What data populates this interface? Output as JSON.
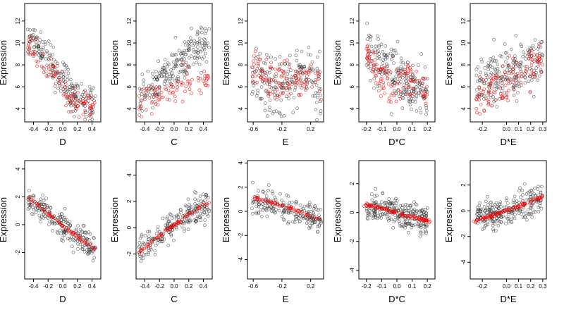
{
  "figure": {
    "title": ""
  },
  "colors": {
    "observed": "#333333",
    "fitted": "#ff0000",
    "frame": "#000000"
  },
  "chart_data": [
    {
      "type": "scatter",
      "xlabel": "D",
      "ylabel": "Expression",
      "xlim": [
        -0.52,
        0.52
      ],
      "ylim": [
        2.8,
        13.6
      ],
      "xticks": [
        -0.4,
        -0.2,
        0.0,
        0.2,
        0.4
      ],
      "xtick_labels": [
        "-0.4",
        "-0.2",
        "0.0",
        "0.2",
        "0.4"
      ],
      "yticks": [
        4,
        6,
        8,
        10,
        12
      ],
      "ytick_labels": [
        "4",
        "6",
        "8",
        "10",
        "12"
      ],
      "observed": {
        "trend": [
          [
            -0.48,
            11.0
          ],
          [
            -0.3,
            9.2
          ],
          [
            -0.1,
            7.4
          ],
          [
            0.1,
            5.6
          ],
          [
            0.3,
            4.6
          ],
          [
            0.45,
            4.2
          ]
        ],
        "spread": 1.8,
        "n": 220
      },
      "fitted": {
        "trend": [
          [
            -0.48,
            10.0
          ],
          [
            -0.3,
            8.6
          ],
          [
            -0.1,
            7.0
          ],
          [
            0.05,
            5.6
          ],
          [
            0.2,
            4.8
          ],
          [
            0.45,
            4.1
          ]
        ],
        "spread": 1.2,
        "n": 90
      }
    },
    {
      "type": "scatter",
      "xlabel": "C",
      "ylabel": "Expression",
      "xlim": [
        -0.52,
        0.52
      ],
      "ylim": [
        2.8,
        13.6
      ],
      "xticks": [
        -0.4,
        -0.2,
        0.0,
        0.2,
        0.4
      ],
      "xtick_labels": [
        "-0.4",
        "-0.2",
        "0.0",
        "0.2",
        "0.4"
      ],
      "yticks": [
        4,
        6,
        8,
        10,
        12
      ],
      "ytick_labels": [
        "4",
        "6",
        "8",
        "10",
        "12"
      ],
      "observed": {
        "trend": [
          [
            -0.48,
            4.8
          ],
          [
            -0.3,
            6.0
          ],
          [
            -0.1,
            7.2
          ],
          [
            0.1,
            8.4
          ],
          [
            0.3,
            9.4
          ],
          [
            0.48,
            10.4
          ]
        ],
        "spread": 2.0,
        "n": 220
      },
      "fitted": {
        "trend": [
          [
            -0.48,
            4.6
          ],
          [
            -0.2,
            5.4
          ],
          [
            0.0,
            6.0
          ],
          [
            0.2,
            6.4
          ],
          [
            0.48,
            6.8
          ]
        ],
        "spread": 1.5,
        "n": 80
      }
    },
    {
      "type": "scatter",
      "xlabel": "E",
      "ylabel": "Expression",
      "xlim": [
        -0.68,
        0.38
      ],
      "ylim": [
        2.8,
        13.6
      ],
      "xticks": [
        -0.6,
        -0.2,
        0.2
      ],
      "xtick_labels": [
        "-0.6",
        "-0.2",
        "0.2"
      ],
      "yticks": [
        4,
        6,
        8,
        10,
        12
      ],
      "ytick_labels": [
        "4",
        "6",
        "8",
        "10",
        "12"
      ],
      "observed": {
        "trend": [
          [
            -0.62,
            7.5
          ],
          [
            -0.22,
            6.0
          ],
          [
            0.2,
            7.5
          ],
          [
            0.35,
            5.0
          ]
        ],
        "spread": 2.6,
        "n": 200
      },
      "fitted": {
        "trend": [
          [
            -0.62,
            8.0
          ],
          [
            -0.22,
            6.5
          ],
          [
            0.2,
            7.0
          ],
          [
            0.35,
            5.5
          ]
        ],
        "spread": 1.8,
        "n": 110
      }
    },
    {
      "type": "scatter",
      "xlabel": "D*C",
      "ylabel": "Expression",
      "xlim": [
        -0.25,
        0.25
      ],
      "ylim": [
        2.8,
        13.6
      ],
      "xticks": [
        -0.2,
        -0.1,
        0.0,
        0.1,
        0.2
      ],
      "xtick_labels": [
        "-0.2",
        "-0.1",
        "0.0",
        "0.1",
        "0.2"
      ],
      "yticks": [
        4,
        6,
        8,
        10,
        12
      ],
      "ytick_labels": [
        "4",
        "6",
        "8",
        "10",
        "12"
      ],
      "observed": {
        "trend": [
          [
            -0.2,
            9.0
          ],
          [
            -0.1,
            8.0
          ],
          [
            0.0,
            7.0
          ],
          [
            0.1,
            6.0
          ],
          [
            0.2,
            5.0
          ]
        ],
        "spread": 2.4,
        "n": 220
      },
      "fitted": {
        "trend": [
          [
            -0.2,
            9.0
          ],
          [
            -0.05,
            5.5
          ],
          [
            0.02,
            6.5
          ],
          [
            0.1,
            7.0
          ],
          [
            0.2,
            6.0
          ]
        ],
        "spread": 1.6,
        "n": 110
      }
    },
    {
      "type": "scatter",
      "xlabel": "D*E",
      "ylabel": "Expression",
      "xlim": [
        -0.3,
        0.33
      ],
      "ylim": [
        2.8,
        13.6
      ],
      "xticks": [
        -0.2,
        0.0,
        0.1,
        0.2,
        0.3
      ],
      "xtick_labels": [
        "-0.2",
        "0.0",
        "0.1",
        "0.2",
        "0.3"
      ],
      "yticks": [
        4,
        6,
        8,
        10,
        12
      ],
      "ytick_labels": [
        "4",
        "6",
        "8",
        "10",
        "12"
      ],
      "observed": {
        "trend": [
          [
            -0.25,
            6.0
          ],
          [
            -0.05,
            7.0
          ],
          [
            0.0,
            7.5
          ],
          [
            0.05,
            7.0
          ],
          [
            0.3,
            9.0
          ]
        ],
        "spread": 2.5,
        "n": 220
      },
      "fitted": {
        "trend": [
          [
            -0.25,
            5.0
          ],
          [
            0.0,
            6.5
          ],
          [
            0.15,
            7.5
          ],
          [
            0.3,
            8.5
          ]
        ],
        "spread": 1.8,
        "n": 110
      }
    },
    {
      "type": "scatter",
      "xlabel": "D",
      "ylabel": "Expression",
      "xlim": [
        -0.52,
        0.52
      ],
      "ylim": [
        -3.9,
        4.6
      ],
      "xticks": [
        -0.4,
        -0.2,
        0.0,
        0.2,
        0.4
      ],
      "xtick_labels": [
        "-0.4",
        "-0.2",
        "0.0",
        "0.2",
        "0.4"
      ],
      "yticks": [
        -2,
        0,
        2,
        4
      ],
      "ytick_labels": [
        "-2",
        "0",
        "2",
        "4"
      ],
      "observed": {
        "trend": [
          [
            -0.48,
            1.8
          ],
          [
            -0.2,
            0.8
          ],
          [
            0.0,
            0.0
          ],
          [
            0.2,
            -0.8
          ],
          [
            0.45,
            -1.8
          ]
        ],
        "spread": 1.0,
        "n": 220
      },
      "fitted": {
        "trend": [
          [
            -0.48,
            2.0
          ],
          [
            -0.2,
            0.8
          ],
          [
            0.0,
            -0.1
          ],
          [
            0.2,
            -0.8
          ],
          [
            0.45,
            -1.8
          ]
        ],
        "spread": 0.15,
        "n": 70
      }
    },
    {
      "type": "scatter",
      "xlabel": "C",
      "ylabel": "Expression",
      "xlim": [
        -0.52,
        0.52
      ],
      "ylim": [
        -3.9,
        5.1
      ],
      "xticks": [
        -0.4,
        -0.2,
        0.0,
        0.2,
        0.4
      ],
      "xtick_labels": [
        "-0.4",
        "-0.2",
        "0.0",
        "0.2",
        "0.4"
      ],
      "yticks": [
        -2,
        0,
        2,
        4
      ],
      "ytick_labels": [
        "-2",
        "0",
        "2",
        "4"
      ],
      "observed": {
        "trend": [
          [
            -0.48,
            -1.8
          ],
          [
            -0.2,
            -0.6
          ],
          [
            0.0,
            0.2
          ],
          [
            0.2,
            1.0
          ],
          [
            0.48,
            1.9
          ]
        ],
        "spread": 1.0,
        "n": 220
      },
      "fitted": {
        "trend": [
          [
            -0.48,
            -1.9
          ],
          [
            -0.2,
            -0.6
          ],
          [
            0.0,
            0.2
          ],
          [
            0.2,
            1.0
          ],
          [
            0.48,
            1.9
          ]
        ],
        "spread": 0.15,
        "n": 70
      }
    },
    {
      "type": "scatter",
      "xlabel": "E",
      "ylabel": "Expression",
      "xlim": [
        -0.68,
        0.38
      ],
      "ylim": [
        -5.6,
        4.2
      ],
      "xticks": [
        -0.6,
        -0.2,
        0.2
      ],
      "xtick_labels": [
        "-0.6",
        "-0.2",
        "0.2"
      ],
      "yticks": [
        -4,
        -2,
        0,
        2,
        4
      ],
      "ytick_labels": [
        "-4",
        "-2",
        "0",
        "2",
        "4"
      ],
      "observed": {
        "trend": [
          [
            -0.62,
            1.0
          ],
          [
            -0.22,
            0.5
          ],
          [
            0.2,
            -0.5
          ],
          [
            0.35,
            -0.8
          ]
        ],
        "spread": 1.1,
        "n": 200
      },
      "fitted": {
        "trend": [
          [
            -0.62,
            1.2
          ],
          [
            -0.22,
            0.5
          ],
          [
            0.0,
            0.1
          ],
          [
            0.2,
            -0.4
          ],
          [
            0.35,
            -0.7
          ]
        ],
        "spread": 0.12,
        "n": 60
      }
    },
    {
      "type": "scatter",
      "xlabel": "D*C",
      "ylabel": "Expression",
      "xlim": [
        -0.25,
        0.25
      ],
      "ylim": [
        -4.6,
        3.6
      ],
      "xticks": [
        -0.2,
        -0.1,
        0.0,
        0.1,
        0.2
      ],
      "xtick_labels": [
        "-0.2",
        "-0.1",
        "0.0",
        "0.1",
        "0.2"
      ],
      "yticks": [
        -4,
        -2,
        0,
        2
      ],
      "ytick_labels": [
        "-4",
        "-2",
        "0",
        "2"
      ],
      "observed": {
        "trend": [
          [
            -0.2,
            0.4
          ],
          [
            -0.05,
            0.3
          ],
          [
            0.0,
            0.0
          ],
          [
            0.05,
            -0.2
          ],
          [
            0.2,
            -0.5
          ]
        ],
        "spread": 1.0,
        "n": 260
      },
      "fitted": {
        "trend": [
          [
            -0.22,
            0.6
          ],
          [
            0.0,
            0.0
          ],
          [
            0.22,
            -0.6
          ]
        ],
        "spread": 0.12,
        "n": 90
      }
    },
    {
      "type": "scatter",
      "xlabel": "D*E",
      "ylabel": "Expression",
      "xlim": [
        -0.3,
        0.33
      ],
      "ylim": [
        -5.3,
        3.9
      ],
      "xticks": [
        -0.2,
        0.0,
        0.1,
        0.2,
        0.3
      ],
      "xtick_labels": [
        "-0.2",
        "0.0",
        "0.1",
        "0.2",
        "0.3"
      ],
      "yticks": [
        -4,
        -2,
        0,
        2
      ],
      "ytick_labels": [
        "-4",
        "-2",
        "0",
        "2"
      ],
      "observed": {
        "trend": [
          [
            -0.25,
            -0.5
          ],
          [
            0.0,
            0.0
          ],
          [
            0.1,
            0.4
          ],
          [
            0.3,
            1.0
          ]
        ],
        "spread": 1.1,
        "n": 260
      },
      "fitted": {
        "trend": [
          [
            -0.28,
            -0.9
          ],
          [
            0.0,
            0.0
          ],
          [
            0.15,
            0.5
          ],
          [
            0.3,
            1.1
          ]
        ],
        "spread": 0.12,
        "n": 90
      }
    }
  ]
}
